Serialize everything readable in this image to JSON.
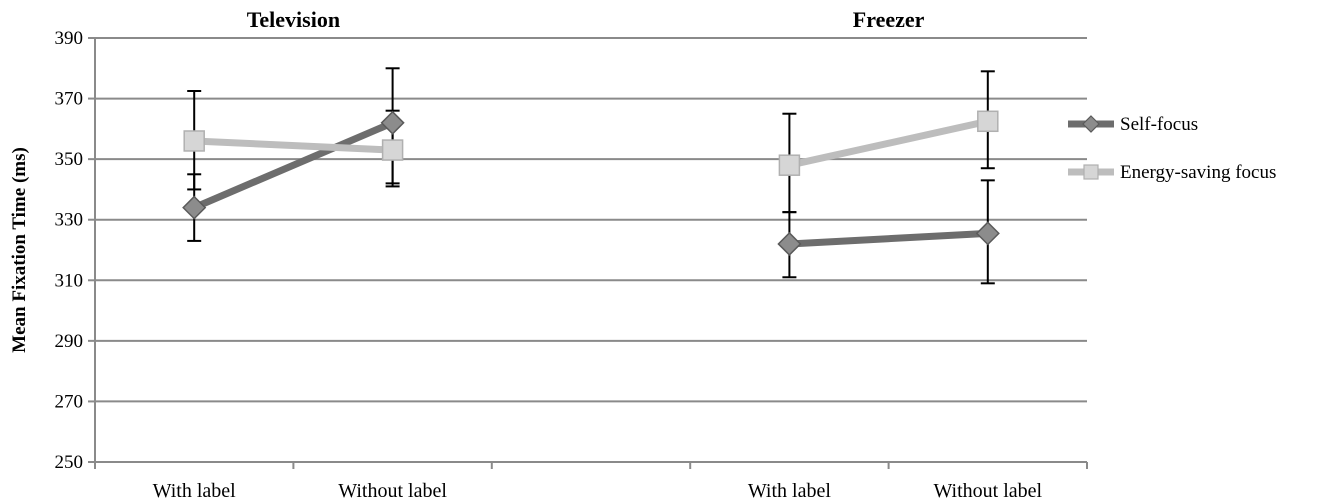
{
  "chart_data": {
    "type": "line",
    "ylabel": "Mean Fixation Time (ms)",
    "ylim": [
      250,
      390
    ],
    "yticks": [
      250,
      270,
      290,
      310,
      330,
      350,
      370,
      390
    ],
    "grid": true,
    "legend_position": "right",
    "panels": [
      {
        "title": "Television",
        "categories": [
          "With label",
          "Without label"
        ],
        "series": [
          {
            "name": "Self-focus",
            "color": "#6d6d6d",
            "marker": "diamond",
            "values": [
              334,
              362
            ],
            "error_low": [
              323,
              342
            ],
            "error_high": [
              345,
              366
            ]
          },
          {
            "name": "Energy-saving focus",
            "color": "#bdbdbd",
            "marker": "square",
            "values": [
              356,
              353
            ],
            "error_low": [
              340,
              341
            ],
            "error_high": [
              372.5,
              380
            ]
          }
        ]
      },
      {
        "title": "Freezer",
        "categories": [
          "With label",
          "Without label"
        ],
        "series": [
          {
            "name": "Self-focus",
            "color": "#6d6d6d",
            "marker": "diamond",
            "values": [
              322,
              325.5
            ],
            "error_low": [
              311,
              309
            ],
            "error_high": [
              332.5,
              343
            ]
          },
          {
            "name": "Energy-saving focus",
            "color": "#bdbdbd",
            "marker": "square",
            "values": [
              348,
              362.5
            ],
            "error_low": [
              332.5,
              347
            ],
            "error_high": [
              365,
              379
            ]
          }
        ]
      }
    ]
  }
}
